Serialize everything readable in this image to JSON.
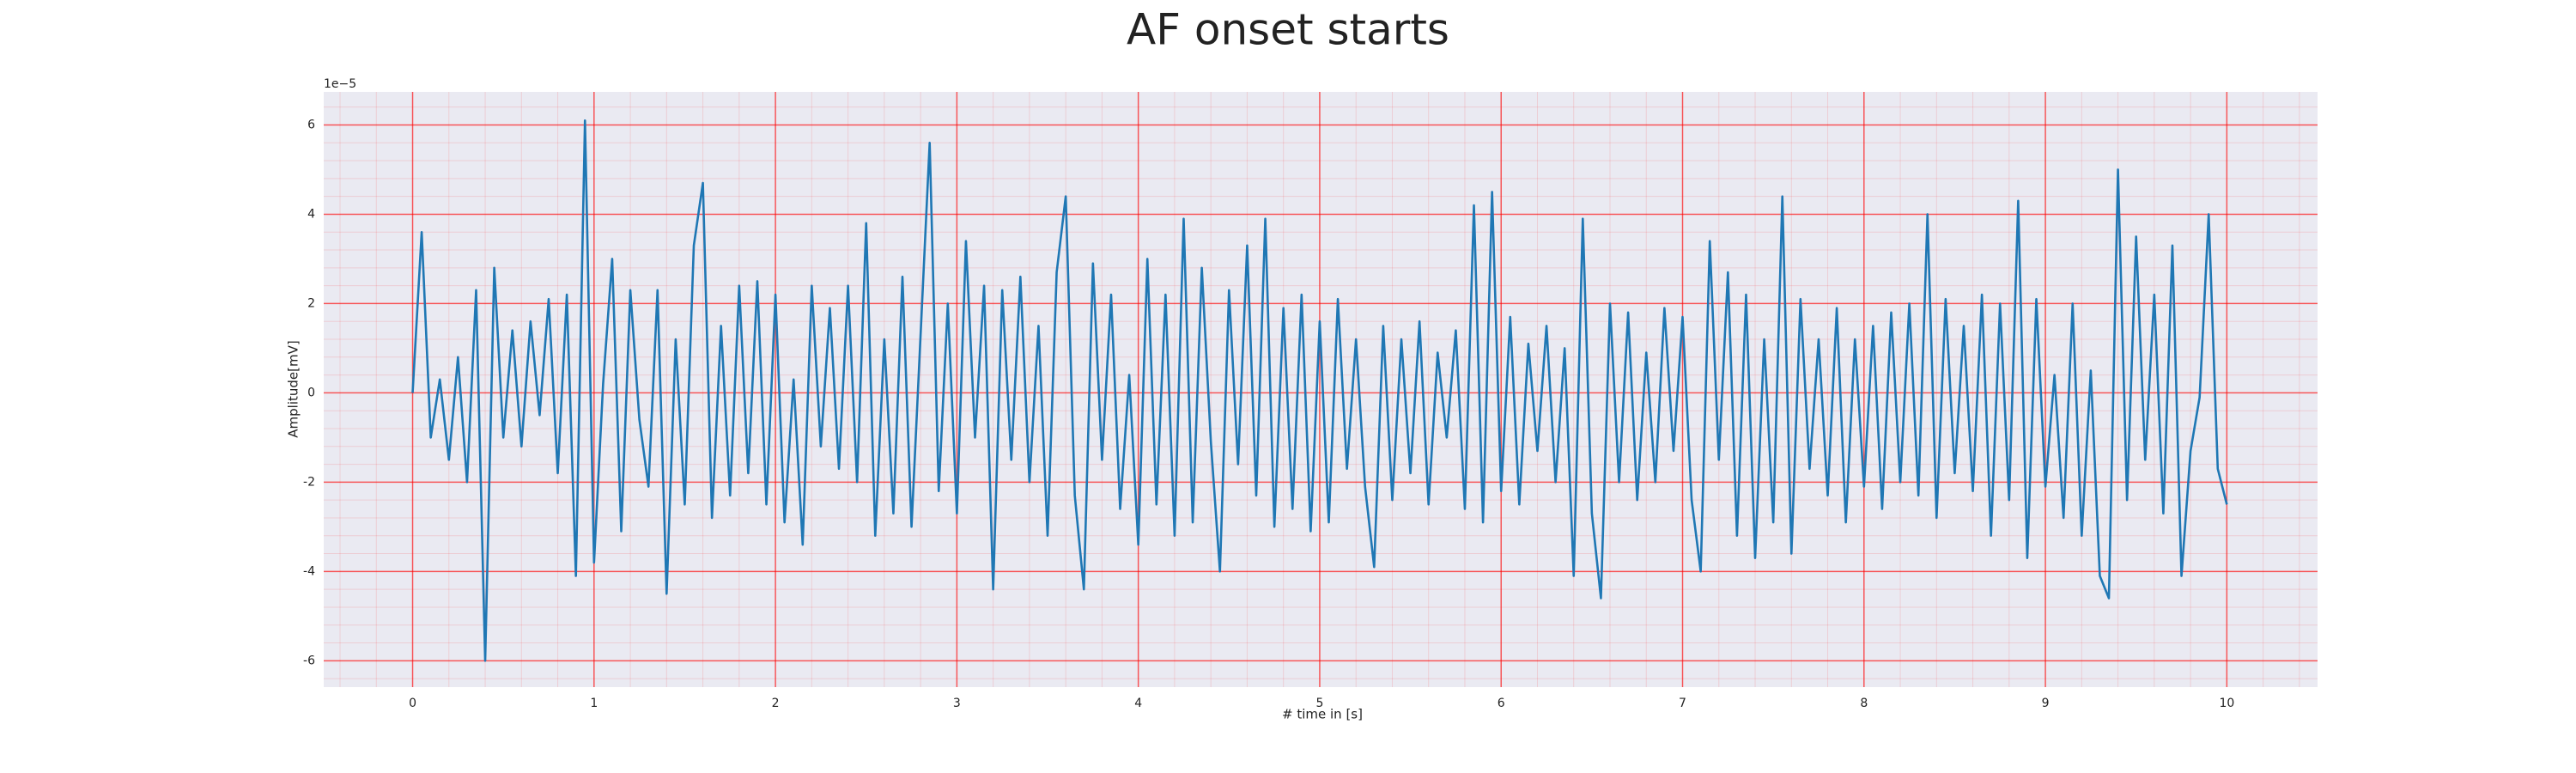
{
  "chart_data": {
    "type": "line",
    "title": "AF onset starts",
    "xlabel": "# time in [s]",
    "ylabel": "Amplitude[mV]",
    "y_offset_label": "1e−5",
    "x": [
      0,
      0.05,
      0.1,
      0.15,
      0.2,
      0.25,
      0.3,
      0.35,
      0.4,
      0.45,
      0.5,
      0.55,
      0.6,
      0.65,
      0.7,
      0.75,
      0.8,
      0.85,
      0.9,
      0.95,
      1,
      1.05,
      1.1,
      1.15,
      1.2,
      1.25,
      1.3,
      1.35,
      1.4,
      1.45,
      1.5,
      1.55,
      1.6,
      1.65,
      1.7,
      1.75,
      1.8,
      1.85,
      1.9,
      1.95,
      2,
      2.05,
      2.1,
      2.15,
      2.2,
      2.25,
      2.3,
      2.35,
      2.4,
      2.45,
      2.5,
      2.55,
      2.6,
      2.65,
      2.7,
      2.75,
      2.8,
      2.85,
      2.9,
      2.95,
      3,
      3.05,
      3.1,
      3.15,
      3.2,
      3.25,
      3.3,
      3.35,
      3.4,
      3.45,
      3.5,
      3.55,
      3.6,
      3.65,
      3.7,
      3.75,
      3.8,
      3.85,
      3.9,
      3.95,
      4,
      4.05,
      4.1,
      4.15,
      4.2,
      4.25,
      4.3,
      4.35,
      4.4,
      4.45,
      4.5,
      4.55,
      4.6,
      4.65,
      4.7,
      4.75,
      4.8,
      4.85,
      4.9,
      4.95,
      5,
      5.05,
      5.1,
      5.15,
      5.2,
      5.25,
      5.3,
      5.35,
      5.4,
      5.45,
      5.5,
      5.55,
      5.6,
      5.65,
      5.7,
      5.75,
      5.8,
      5.85,
      5.9,
      5.95,
      6,
      6.05,
      6.1,
      6.15,
      6.2,
      6.25,
      6.3,
      6.35,
      6.4,
      6.45,
      6.5,
      6.55,
      6.6,
      6.65,
      6.7,
      6.75,
      6.8,
      6.85,
      6.9,
      6.95,
      7,
      7.05,
      7.1,
      7.15,
      7.2,
      7.25,
      7.3,
      7.35,
      7.4,
      7.45,
      7.5,
      7.55,
      7.6,
      7.65,
      7.7,
      7.75,
      7.8,
      7.85,
      7.9,
      7.95,
      8,
      8.05,
      8.1,
      8.15,
      8.2,
      8.25,
      8.3,
      8.35,
      8.4,
      8.45,
      8.5,
      8.55,
      8.6,
      8.65,
      8.7,
      8.75,
      8.8,
      8.85,
      8.9,
      8.95,
      9,
      9.05,
      9.1,
      9.15,
      9.2,
      9.25,
      9.3,
      9.35,
      9.4,
      9.45,
      9.5,
      9.55,
      9.6,
      9.65,
      9.7,
      9.75,
      9.8,
      9.85,
      9.9,
      9.95,
      10
    ],
    "series": [
      {
        "color": "#1f77b4",
        "values": [
          0,
          3.6,
          -1.0,
          0.3,
          -1.5,
          0.8,
          -2.0,
          2.3,
          -6.0,
          2.8,
          -1.0,
          1.4,
          -1.2,
          1.6,
          -0.5,
          2.1,
          -1.8,
          2.2,
          -4.1,
          6.1,
          -3.8,
          0.2,
          3.0,
          -3.1,
          2.3,
          -0.6,
          -2.1,
          2.3,
          -4.5,
          1.2,
          -2.5,
          3.3,
          4.7,
          -2.8,
          1.5,
          -2.3,
          2.4,
          -1.8,
          2.5,
          -2.5,
          2.2,
          -2.9,
          0.3,
          -3.4,
          2.4,
          -1.2,
          1.9,
          -1.7,
          2.4,
          -2.0,
          3.8,
          -3.2,
          1.2,
          -2.7,
          2.6,
          -3.0,
          1.3,
          5.6,
          -2.2,
          2.0,
          -2.7,
          3.4,
          -1.0,
          2.4,
          -4.4,
          2.3,
          -1.5,
          2.6,
          -2.0,
          1.5,
          -3.2,
          2.7,
          4.4,
          -2.3,
          -4.4,
          2.9,
          -1.5,
          2.2,
          -2.6,
          0.4,
          -3.4,
          3.0,
          -2.5,
          2.2,
          -3.2,
          3.9,
          -2.9,
          2.8,
          -1.1,
          -4.0,
          2.3,
          -1.6,
          3.3,
          -2.3,
          3.9,
          -3.0,
          1.9,
          -2.6,
          2.2,
          -3.1,
          1.6,
          -2.9,
          2.1,
          -1.7,
          1.2,
          -2.1,
          -3.9,
          1.5,
          -2.4,
          1.2,
          -1.8,
          1.6,
          -2.5,
          0.9,
          -1.0,
          1.4,
          -2.6,
          4.2,
          -2.9,
          4.5,
          -2.2,
          1.7,
          -2.5,
          1.1,
          -1.3,
          1.5,
          -2.0,
          1.0,
          -4.1,
          3.9,
          -2.7,
          -4.6,
          2.0,
          -2.0,
          1.8,
          -2.4,
          0.9,
          -2.0,
          1.9,
          -1.3,
          1.7,
          -2.4,
          -4.0,
          3.4,
          -1.5,
          2.7,
          -3.2,
          2.2,
          -3.7,
          1.2,
          -2.9,
          4.4,
          -3.6,
          2.1,
          -1.7,
          1.2,
          -2.3,
          1.9,
          -2.9,
          1.2,
          -2.1,
          1.5,
          -2.6,
          1.8,
          -2.0,
          2.0,
          -2.3,
          4.0,
          -2.8,
          2.1,
          -1.8,
          1.5,
          -2.2,
          2.2,
          -3.2,
          2.0,
          -2.4,
          4.3,
          -3.7,
          2.1,
          -2.1,
          0.4,
          -2.8,
          2.0,
          -3.2,
          0.5,
          -4.1,
          -4.6,
          5.0,
          -2.4,
          3.5,
          -1.5,
          2.2,
          -2.7,
          3.3,
          -4.1,
          -1.3,
          -0.1,
          4.0,
          -1.7,
          -2.5
        ]
      }
    ],
    "xlim": [
      -0.49,
      10.5
    ],
    "ylim": [
      -6.59,
      6.74
    ],
    "xticks": [
      0,
      1,
      2,
      3,
      4,
      5,
      6,
      7,
      8,
      9,
      10
    ],
    "yticks": [
      -6,
      -4,
      -2,
      0,
      2,
      4,
      6
    ],
    "grid": true,
    "grid_color": "#ff0000",
    "minor_grid": true,
    "background": "#eaeaf2"
  }
}
